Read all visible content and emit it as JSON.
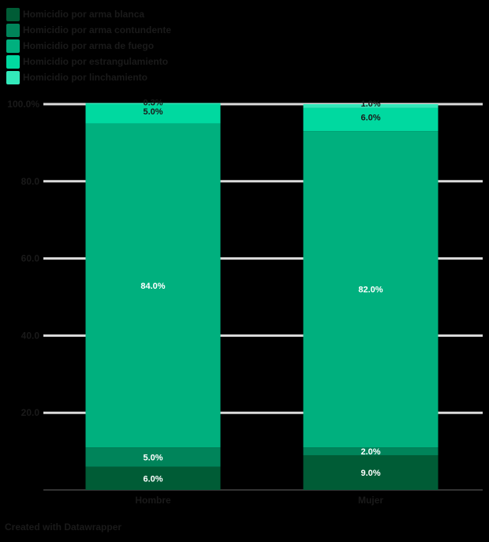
{
  "chart_data": {
    "type": "bar",
    "stacked": true,
    "categories": [
      "Hombre",
      "Mujer"
    ],
    "series": [
      {
        "name": "Homicidio por arma blanca",
        "color": "#005c36",
        "values": [
          6.0,
          9.0
        ]
      },
      {
        "name": "Homicidio por arma contundente",
        "color": "#00845a",
        "values": [
          5.0,
          2.0
        ]
      },
      {
        "name": "Homicidio por arma de fuego",
        "color": "#00b07e",
        "values": [
          84.0,
          82.0
        ]
      },
      {
        "name": "Homicidio por estrangulamiento",
        "color": "#00d9a0",
        "values": [
          5.0,
          6.0
        ]
      },
      {
        "name": "Homicidio por linchamiento",
        "color": "#33e8ba",
        "values": [
          0.3,
          1.0
        ]
      }
    ],
    "value_labels": [
      [
        "6.0%",
        "9.0%"
      ],
      [
        "5.0%",
        "2.0%"
      ],
      [
        "84.0%",
        "82.0%"
      ],
      [
        "5.0%",
        "6.0%"
      ],
      [
        "0.3%",
        "1.0%"
      ]
    ],
    "y_ticks": [
      "20.0",
      "40.0",
      "60.0",
      "80.0",
      "100.0%"
    ],
    "ylim": [
      0,
      100
    ],
    "grid": true,
    "legend_position": "top-left"
  },
  "credit": "Created with Datawrapper"
}
